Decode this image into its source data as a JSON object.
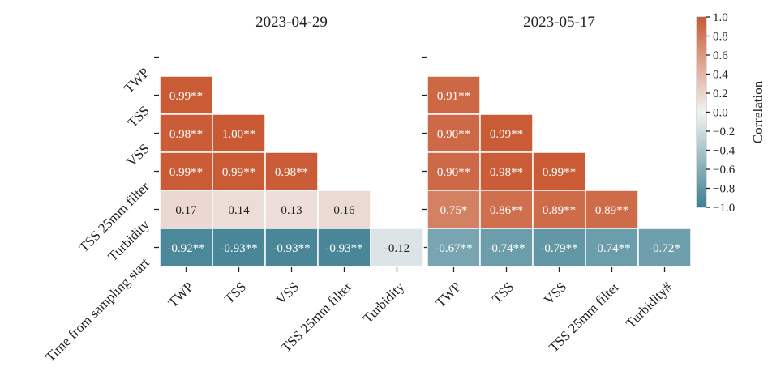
{
  "chart_data": {
    "type": "heatmap",
    "row_labels": [
      "TWP",
      "TSS",
      "VSS",
      "TSS 25mm filter",
      "Turbidity",
      "Time from sampling start"
    ],
    "colorbar": {
      "label": "Correlation",
      "range": [
        -1.0,
        1.0
      ],
      "ticks": [
        "1.0",
        "0.8",
        "0.6",
        "0.4",
        "0.2",
        "0.0",
        "−0.2",
        "−0.4",
        "−0.6",
        "−0.8",
        "−1.0"
      ],
      "low_color": "#3c7f91",
      "mid_color": "#f2f2f2",
      "high_color": "#c95a33"
    },
    "panels": [
      {
        "title": "2023-04-29",
        "col_labels": [
          "TWP",
          "TSS",
          "VSS",
          "TSS 25mm filter",
          "Turbidity"
        ],
        "matrix": [
          [
            0.99
          ],
          [
            0.98,
            1.0
          ],
          [
            0.99,
            0.99,
            0.98
          ],
          [
            0.17,
            0.14,
            0.13,
            0.16
          ],
          [
            -0.92,
            -0.93,
            -0.93,
            -0.93,
            -0.12
          ]
        ],
        "labels": [
          [
            "0.99**"
          ],
          [
            "0.98**",
            "1.00**"
          ],
          [
            "0.99**",
            "0.99**",
            "0.98**"
          ],
          [
            "0.17",
            "0.14",
            "0.13",
            "0.16"
          ],
          [
            "-0.92**",
            "-0.93**",
            "-0.93**",
            "-0.93**",
            "-0.12"
          ]
        ]
      },
      {
        "title": "2023-05-17",
        "col_labels": [
          "TWP",
          "TSS",
          "VSS",
          "TSS 25mm filter",
          "Turbidity#"
        ],
        "matrix": [
          [
            0.91
          ],
          [
            0.9,
            0.99
          ],
          [
            0.9,
            0.98,
            0.99
          ],
          [
            0.75,
            0.86,
            0.89,
            0.89
          ],
          [
            -0.67,
            -0.74,
            -0.79,
            -0.74,
            -0.72
          ]
        ],
        "labels": [
          [
            "0.91**"
          ],
          [
            "0.90**",
            "0.99**"
          ],
          [
            "0.90**",
            "0.98**",
            "0.99**"
          ],
          [
            "0.75*",
            "0.86**",
            "0.89**",
            "0.89**"
          ],
          [
            "-0.67**",
            "-0.74**",
            "-0.79**",
            "-0.74**",
            "-0.72*"
          ]
        ]
      }
    ]
  }
}
